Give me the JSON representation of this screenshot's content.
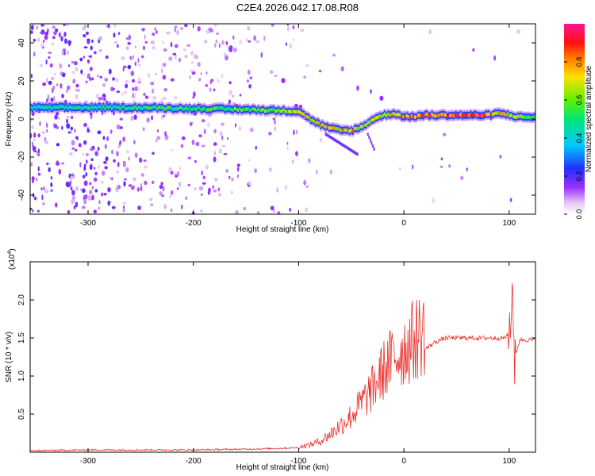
{
  "figure": {
    "title": "C2E4.2026.042.17.08.R08"
  },
  "chart_data": [
    {
      "type": "heatmap",
      "xlabel": "Height of straight line (km)",
      "ylabel": "Frequency (Hz)",
      "xlim": [
        -355,
        125
      ],
      "ylim": [
        -50,
        50
      ],
      "xticks": [
        -300,
        -200,
        -100,
        0,
        100
      ],
      "yticks": [
        -40,
        -20,
        0,
        20,
        40
      ],
      "grid": false,
      "colorbar": {
        "label": "Normalized spectral amplitude",
        "range": [
          0,
          1
        ],
        "ticks": [
          0.0,
          0.2,
          0.4,
          0.6,
          0.8
        ],
        "colormap": "rainbow (white-purple-blue-cyan-green-yellow-red-magenta)"
      },
      "ridge": {
        "x": [
          -355,
          -300,
          -250,
          -200,
          -150,
          -120,
          -100,
          -90,
          -80,
          -70,
          -60,
          -50,
          -40,
          -30,
          -20,
          -10,
          0,
          20,
          40,
          60,
          80,
          90,
          100,
          110,
          125
        ],
        "frequency": [
          6,
          6,
          6,
          5.5,
          5,
          4.5,
          4,
          0,
          -3,
          -5,
          -6,
          -6,
          -4,
          0,
          2,
          3,
          1,
          2,
          2,
          2,
          2,
          3,
          2,
          1,
          1
        ],
        "amplitude": [
          0.45,
          0.5,
          0.55,
          0.55,
          0.6,
          0.65,
          0.7,
          0.72,
          0.75,
          0.78,
          0.8,
          0.8,
          0.7,
          0.65,
          0.7,
          0.75,
          0.85,
          0.95,
          0.95,
          0.95,
          0.9,
          0.8,
          0.7,
          0.6,
          0.55
        ]
      }
    },
    {
      "type": "line",
      "xlabel": "Height of straight line (km)",
      "ylabel": "SNR (10 * v/v)",
      "y_multiplier": "(x10",
      "y_multiplier_exp": "4",
      "y_multiplier_close": ")",
      "xlim": [
        -355,
        125
      ],
      "ylim": [
        0,
        2.5
      ],
      "xticks": [
        -300,
        -200,
        -100,
        0,
        100
      ],
      "yticks": [
        0.5,
        1.0,
        1.5,
        2.0
      ],
      "grid": false,
      "series": [
        {
          "color": "#e8302c",
          "x": [
            -355,
            -300,
            -250,
            -200,
            -150,
            -120,
            -100,
            -90,
            -80,
            -70,
            -60,
            -50,
            -40,
            -30,
            -20,
            -10,
            0,
            10,
            20,
            30,
            40,
            60,
            80,
            95,
            100,
            103,
            105,
            110,
            125
          ],
          "y": [
            0.02,
            0.03,
            0.03,
            0.03,
            0.04,
            0.05,
            0.06,
            0.08,
            0.12,
            0.2,
            0.3,
            0.4,
            0.55,
            0.7,
            0.9,
            1.05,
            1.15,
            1.25,
            1.35,
            1.45,
            1.5,
            1.5,
            1.5,
            1.5,
            1.55,
            2.2,
            1.2,
            1.48,
            1.47
          ]
        }
      ]
    }
  ]
}
